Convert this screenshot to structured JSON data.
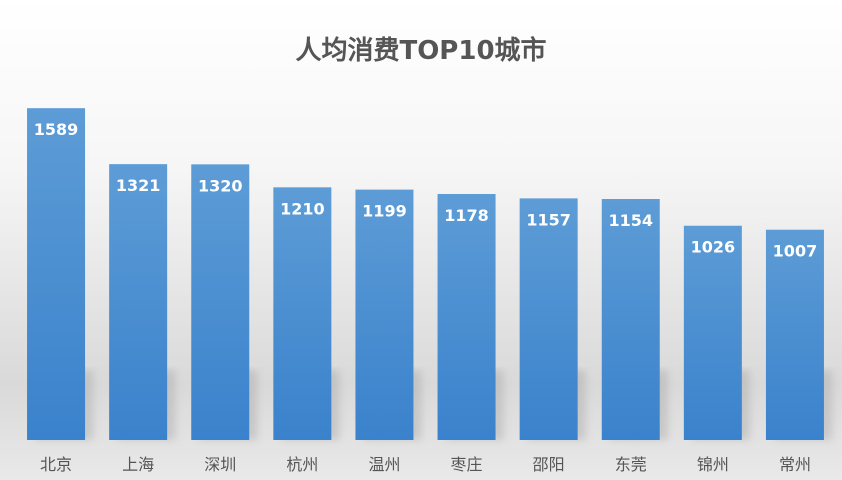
{
  "chart_data": {
    "type": "bar",
    "title": "人均消费TOP10城市",
    "categories": [
      "北京",
      "上海",
      "深圳",
      "杭州",
      "温州",
      "枣庄",
      "邵阳",
      "东莞",
      "锦州",
      "常州"
    ],
    "values": [
      1589,
      1321,
      1320,
      1210,
      1199,
      1178,
      1157,
      1154,
      1026,
      1007
    ],
    "data_labels": [
      "1589",
      "1321",
      "1320",
      "1210",
      "1199",
      "1178",
      "1157",
      "1154",
      "1026",
      "1007"
    ],
    "xlabel": "",
    "ylabel": "",
    "ylim": [
      0,
      1700
    ],
    "grid": false,
    "legend": "none"
  },
  "colors": {
    "bar_top": "#5d9cd6",
    "bar_bottom": "#3a82cc"
  }
}
